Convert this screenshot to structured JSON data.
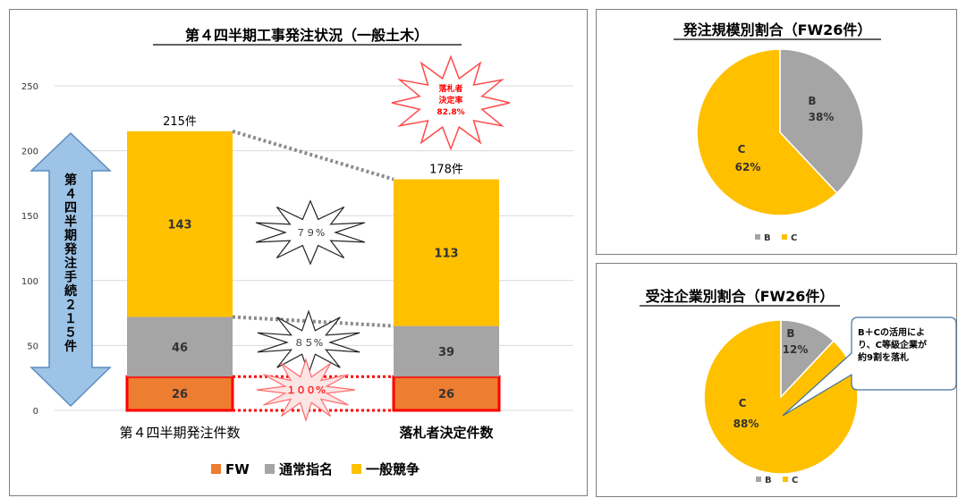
{
  "main": {
    "title": "第４四半期工事発注状況（一般土木）",
    "arrow_text": "第４四半期発注手続２１５件",
    "burst_decision": [
      "落札者",
      "決定率",
      "82.8%"
    ],
    "burst_general_pct": "７９%",
    "burst_nominated_pct": "８５%",
    "burst_fw_pct": "１００%",
    "legend": [
      {
        "label": "FW",
        "color": "#ED7D31"
      },
      {
        "label": "通常指名",
        "color": "#A5A5A5"
      },
      {
        "label": "一般競争",
        "color": "#FFC000"
      }
    ]
  },
  "chart_data": [
    {
      "type": "bar",
      "stacked": true,
      "title": "第４四半期工事発注状況（一般土木）",
      "categories": [
        "第４四半期発注件数",
        "落札者決定件数"
      ],
      "series": [
        {
          "name": "FW",
          "values": [
            26,
            26
          ],
          "color": "#ED7D31"
        },
        {
          "name": "通常指名",
          "values": [
            46,
            39
          ],
          "color": "#A5A5A5"
        },
        {
          "name": "一般競争",
          "values": [
            143,
            113
          ],
          "color": "#FFC000"
        }
      ],
      "totals": [
        "215件",
        "178件"
      ],
      "ylim": [
        0,
        250
      ],
      "yticks": [
        0,
        50,
        100,
        150,
        200,
        250
      ],
      "grid": true,
      "legend_position": "bottom"
    },
    {
      "type": "pie",
      "title": "発注規模別割合（FW26件）",
      "slices": [
        {
          "label": "B",
          "pct": "38%",
          "value": 38,
          "color": "#A5A5A5"
        },
        {
          "label": "C",
          "pct": "62%",
          "value": 62,
          "color": "#FFC000"
        }
      ],
      "legend": [
        "B",
        "C"
      ],
      "legend_position": "bottom"
    },
    {
      "type": "pie",
      "title": "受注企業別割合（FW26件）",
      "slices": [
        {
          "label": "B",
          "pct": "12%",
          "value": 12,
          "color": "#A5A5A5"
        },
        {
          "label": "C",
          "pct": "88%",
          "value": 88,
          "color": "#FFC000"
        }
      ],
      "legend": [
        "B",
        "C"
      ],
      "legend_position": "bottom",
      "callout": [
        "B＋Cの活用によ",
        "り、C等級企業が",
        "約9割を落札"
      ]
    }
  ]
}
